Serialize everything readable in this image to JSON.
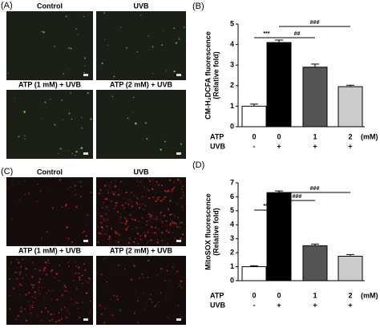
{
  "panels": [
    {
      "label": "(A)",
      "images": [
        "Control",
        "UVB",
        "ATP (1 mM) + UVB",
        "ATP (2 mM) + UVB"
      ]
    },
    {
      "label": "(C)",
      "images": [
        "Control",
        "UVB",
        "ATP (1 mM) + UVB",
        "ATP (2 mM) + UVB"
      ]
    }
  ],
  "chart_data": [
    {
      "type": "bar",
      "panel_label": "(B)",
      "ylabel": [
        "CM-H₂DCFA fluorescence",
        "(Relative fold)"
      ],
      "values": [
        1.0,
        4.1,
        2.9,
        1.95
      ],
      "errors": [
        0.1,
        0.12,
        0.15,
        0.07
      ],
      "colors": [
        "#ffffff",
        "#000000",
        "#555555",
        "#cccccc"
      ],
      "ylim": [
        0,
        5
      ],
      "yticks": [
        0,
        1,
        2,
        3,
        4,
        5
      ],
      "rows": [
        {
          "label": "ATP",
          "values": [
            0,
            0,
            1,
            2
          ],
          "unit": "(mM)"
        },
        {
          "label": "UVB",
          "values": [
            "-",
            "+",
            "+",
            "+"
          ]
        }
      ],
      "annotations": [
        "***",
        "##",
        "###"
      ]
    },
    {
      "type": "bar",
      "panel_label": "(D)",
      "ylabel": [
        "MitoSOX fluorescence",
        "(Relative fold)"
      ],
      "values": [
        1.0,
        6.3,
        2.5,
        1.75
      ],
      "errors": [
        0.07,
        0.12,
        0.12,
        0.12
      ],
      "colors": [
        "#ffffff",
        "#000000",
        "#555555",
        "#cccccc"
      ],
      "ylim": [
        0,
        7
      ],
      "yticks": [
        0,
        1,
        2,
        3,
        4,
        5,
        6,
        7
      ],
      "rows": [
        {
          "label": "ATP",
          "values": [
            0,
            0,
            1,
            2
          ],
          "unit": "(mM)"
        },
        {
          "label": "UVB",
          "values": [
            "-",
            "+",
            "+",
            "+"
          ]
        }
      ],
      "annotations": [
        "***",
        "###",
        "###"
      ]
    }
  ]
}
